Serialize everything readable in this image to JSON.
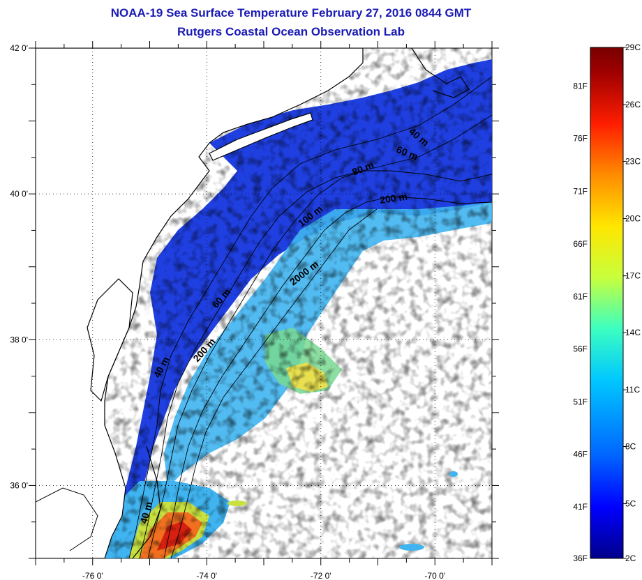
{
  "header": {
    "title": "NOAA-19 Sea Surface Temperature February 27, 2016 0844 GMT",
    "subtitle": "Rutgers Coastal Ocean Observation Lab"
  },
  "map": {
    "lat_labels": [
      "42 0'",
      "40 0'",
      "38 0'",
      "36 0'"
    ],
    "lon_labels": [
      "-76 0'",
      "-74 0'",
      "-72 0'",
      "-70 0'"
    ],
    "lat_range": [
      35,
      42
    ],
    "lon_range": [
      -77,
      -69
    ],
    "contours": [
      {
        "label": "40 m"
      },
      {
        "label": "60 m"
      },
      {
        "label": "80 m"
      },
      {
        "label": "200 m"
      },
      {
        "label": "100 m"
      },
      {
        "label": "2000 m"
      },
      {
        "label": "60 m"
      },
      {
        "label": "200 m"
      },
      {
        "label": "40 m"
      },
      {
        "label": "40 m"
      }
    ]
  },
  "colorbar": {
    "f_labels": [
      "81F",
      "76F",
      "71F",
      "66F",
      "61F",
      "56F",
      "51F",
      "46F",
      "41F",
      "36F"
    ],
    "c_labels": [
      "29C",
      "26C",
      "23C",
      "20C",
      "17C",
      "14C",
      "11C",
      "8C",
      "5C",
      "2C"
    ],
    "gradient_stops": [
      "#00008a",
      "#0000ff",
      "#0064ff",
      "#00c8ff",
      "#3cffc0",
      "#c8ff3c",
      "#ffe600",
      "#ff8c00",
      "#ff1e00",
      "#a00000",
      "#780000"
    ]
  },
  "palette": {
    "title_color": "#1a1ab4",
    "water_blue": "#1f3fe0",
    "shelf_blue": "#2b5cf0",
    "cyan": "#3fb4f0",
    "green": "#78d890",
    "yellow": "#e8e050",
    "warm": "#f07020",
    "hot": "#d82010"
  }
}
